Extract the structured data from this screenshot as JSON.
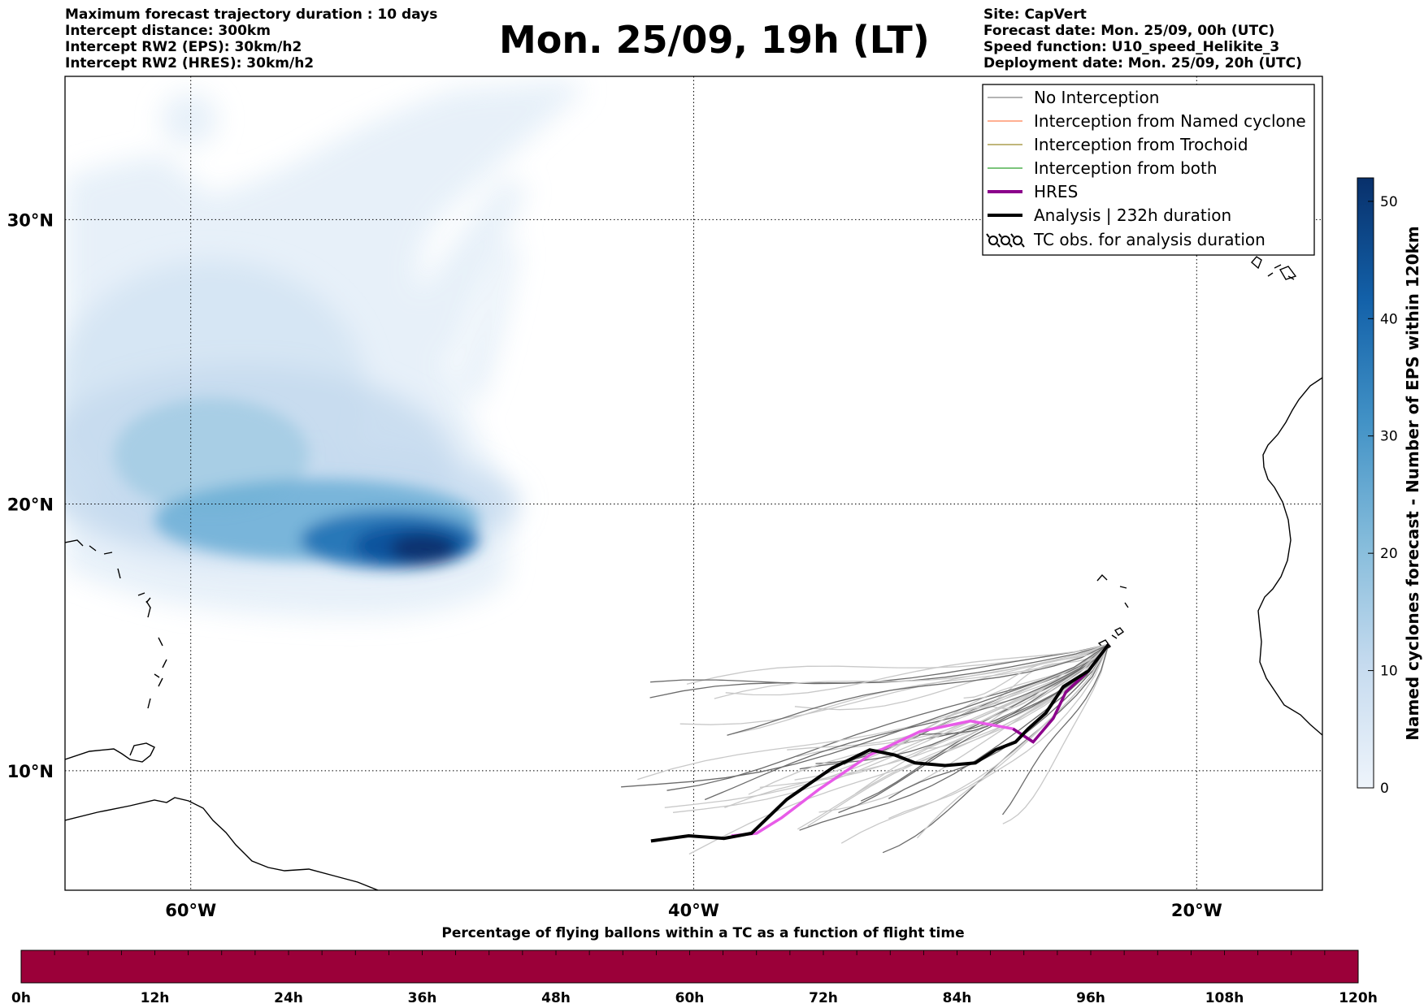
{
  "header": {
    "left_lines": [
      "Maximum forecast trajectory duration : 10 days",
      "Intercept distance: 300km",
      "Intercept RW2 (EPS):  30km/h2",
      "Intercept RW2 (HRES): 30km/h2"
    ],
    "title": "Mon. 25/09, 19h (LT)",
    "right_lines": [
      "Site: CapVert",
      "Forecast date: Mon. 25/09, 00h (UTC)",
      "Speed function: U10_speed_Helikite_3",
      "Deployment date: Mon. 25/09, 20h (UTC)"
    ]
  },
  "map": {
    "lat_labels": [
      "30°N",
      "20°N",
      "10°N"
    ],
    "lon_labels": [
      "60°W",
      "40°W",
      "20°W"
    ],
    "lat_values": [
      30,
      20,
      10
    ],
    "lon_values": [
      -60,
      -40,
      -20
    ],
    "extent": {
      "lon_min": -65,
      "lon_max": -15,
      "lat_min": 5.4,
      "lat_max": 34.7
    },
    "grid": "dotted",
    "legend": {
      "placement": "top-right",
      "items": [
        {
          "label": "No Interception",
          "color": "#888888"
        },
        {
          "label": "Interception from Named cyclone",
          "color": "#ff7f50"
        },
        {
          "label": "Interception from Trochoid",
          "color": "#9a8a2a"
        },
        {
          "label": "Interception from both",
          "color": "#2ca02c"
        },
        {
          "label": "HRES",
          "color": "#8b008b"
        },
        {
          "label": "Analysis | 232h duration",
          "color": "#000000"
        },
        {
          "label": "TC obs. for analysis duration",
          "icon": "cyclone-symbols-icon"
        }
      ]
    },
    "site": "CapVert"
  },
  "colorbar": {
    "label": "Named cyclones forecast - Number of EPS within 120km",
    "ticks": [
      "0",
      "10",
      "20",
      "30",
      "40",
      "50"
    ],
    "tick_values": [
      0,
      10,
      20,
      30,
      40,
      50
    ],
    "max": 52,
    "colors": [
      "#e6eff9",
      "#08306b"
    ]
  },
  "bottom_bar": {
    "title": "Percentage of flying ballons within a TC as a function of flight time",
    "ticks": [
      "0h",
      "12h",
      "24h",
      "36h",
      "48h",
      "60h",
      "72h",
      "84h",
      "96h",
      "108h",
      "120h"
    ],
    "color": "#9b0039"
  },
  "chart_data": {
    "type": "line",
    "title": "Mon. 25/09, 19h (LT)",
    "xlabel": "",
    "ylabel": "",
    "x_ticks": [
      "60°W",
      "40°W",
      "20°W"
    ],
    "y_ticks": [
      "30°N",
      "20°N",
      "10°N"
    ],
    "series": [
      {
        "name": "HRES",
        "color": "#8b008b",
        "lon": [
          -23.5,
          -24.3,
          -25.2,
          -25.7,
          -26.5,
          -27.3,
          -29,
          -31,
          -33,
          -35,
          -36.5,
          -37.5,
          -38.5
        ],
        "lat": [
          14.8,
          13.8,
          13,
          12,
          11.1,
          11.6,
          11.9,
          11.5,
          10.6,
          9.3,
          8.2,
          7.6,
          7.5
        ]
      },
      {
        "name": "Analysis | 232h duration",
        "color": "#000000",
        "lon": [
          -23.5,
          -24.3,
          -25.3,
          -26,
          -26.7,
          -27.2,
          -28,
          -28.8,
          -30,
          -31.2,
          -32,
          -33,
          -34.5,
          -36.3,
          -37.7,
          -38.8,
          -40.2,
          -41.7
        ],
        "lat": [
          14.8,
          13.8,
          13.2,
          12.2,
          11.6,
          11.1,
          10.8,
          10.3,
          10.2,
          10.3,
          10.6,
          10.8,
          10.1,
          8.9,
          7.6,
          7.4,
          7.5,
          7.3
        ]
      }
    ]
  }
}
